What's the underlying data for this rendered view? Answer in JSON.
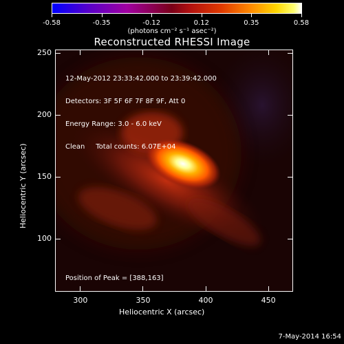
{
  "colorbar": {
    "ticks": [
      "-0.58",
      "-0.35",
      "-0.12",
      "0.12",
      "0.35",
      "0.58"
    ],
    "units": "(photons cm⁻² s⁻¹ asec⁻²)",
    "min": -0.58,
    "max": 0.58,
    "colors": [
      "#0000ff",
      "#a000a0",
      "#b01010",
      "#ff8c00",
      "#ffff70",
      "#ffffff"
    ]
  },
  "title": "Reconstructed RHESSI Image",
  "info": {
    "line1": "12-May-2012 23:33:42.000 to 23:39:42.000",
    "line2": "Detectors: 3F 5F 6F 7F 8F 9F, Att 0",
    "line3": "Energy Range: 3.0 - 6.0 keV",
    "line4": "Clean     Total counts: 6.07E+04"
  },
  "peak_label": "Position of Peak = [388,163]",
  "x_axis": {
    "label": "Heliocentric X (arcsec)",
    "range": [
      280,
      470
    ],
    "ticks": [
      "300",
      "350",
      "400",
      "450"
    ]
  },
  "y_axis": {
    "label": "Heliocentric Y (arcsec)",
    "range": [
      57,
      253
    ],
    "ticks": [
      "100",
      "150",
      "200",
      "250"
    ]
  },
  "source": {
    "peak_x": 388,
    "peak_y": 163
  },
  "timestamp": "7-May-2014 16:54"
}
